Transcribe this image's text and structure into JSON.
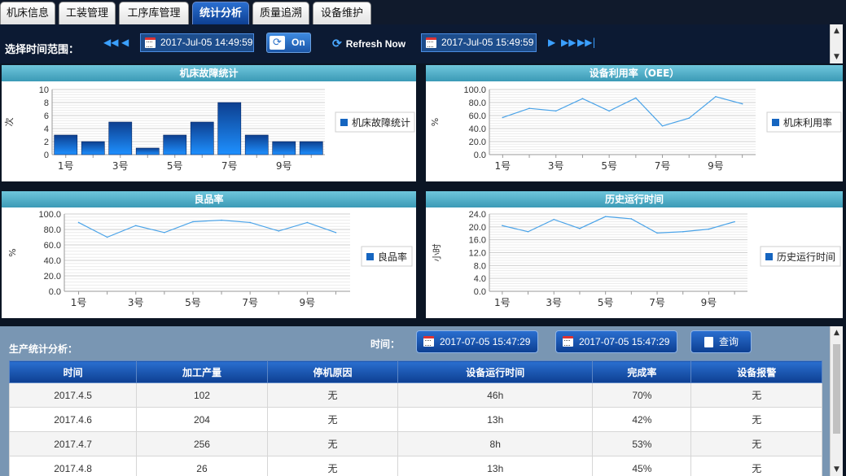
{
  "tabs": [
    "机床信息",
    "工装管理",
    "工序库管理",
    "统计分析",
    "质量追溯",
    "设备维护"
  ],
  "active_tab": "统计分析",
  "toolbar": {
    "range_label": "选择时间范围：",
    "start_time": "2017-Jul-05 14:49:59",
    "toggle_label": "On",
    "refresh_label": "Refresh Now",
    "end_time": "2017-Jul-05 15:49:59"
  },
  "chart_data": [
    {
      "type": "bar",
      "title": "机床故障统计",
      "ylabel": "次",
      "legend": "机床故障统计",
      "categories": [
        "1号",
        "2号",
        "3号",
        "4号",
        "5号",
        "6号",
        "7号",
        "8号",
        "9号",
        "10号"
      ],
      "tick_labels": [
        "1号",
        "3号",
        "5号",
        "7号",
        "9号"
      ],
      "values": [
        3,
        2,
        5,
        1,
        3,
        5,
        8,
        3,
        2,
        2
      ],
      "yticks": [
        "0",
        "2",
        "4",
        "6",
        "8",
        "10"
      ],
      "ylim": [
        0,
        10
      ],
      "grid": true,
      "legend_position": "right"
    },
    {
      "type": "line",
      "title": "设备利用率（OEE）",
      "ylabel": "%",
      "legend": "机床利用率",
      "categories": [
        "1号",
        "2号",
        "3号",
        "4号",
        "5号",
        "6号",
        "7号",
        "8号",
        "9号",
        "10号"
      ],
      "tick_labels": [
        "1号",
        "3号",
        "5号",
        "7号",
        "9号"
      ],
      "values": [
        57,
        71,
        67,
        86,
        67,
        87,
        44,
        56,
        89,
        78
      ],
      "yticks": [
        "0.0",
        "20.0",
        "40.0",
        "60.0",
        "80.0",
        "100.0"
      ],
      "ylim": [
        0,
        100
      ],
      "grid": true,
      "legend_position": "right"
    },
    {
      "type": "line",
      "title": "良品率",
      "ylabel": "%",
      "legend": "良品率",
      "categories": [
        "1号",
        "2号",
        "3号",
        "4号",
        "5号",
        "6号",
        "7号",
        "8号",
        "9号",
        "10号"
      ],
      "tick_labels": [
        "1号",
        "3号",
        "5号",
        "7号",
        "9号"
      ],
      "values": [
        89,
        70,
        85,
        76,
        90,
        92,
        89,
        78,
        89,
        76
      ],
      "yticks": [
        "0.0",
        "20.0",
        "40.0",
        "60.0",
        "80.0",
        "100.0"
      ],
      "ylim": [
        0,
        100
      ],
      "grid": true,
      "legend_position": "right"
    },
    {
      "type": "line",
      "title": "历史运行时间",
      "ylabel": "小时",
      "legend": "历史运行时间",
      "categories": [
        "1号",
        "2号",
        "3号",
        "4号",
        "5号",
        "6号",
        "7号",
        "8号",
        "9号",
        "10号"
      ],
      "tick_labels": [
        "1号",
        "3号",
        "5号",
        "7号",
        "9号"
      ],
      "values": [
        20.4,
        18.5,
        22.3,
        19.5,
        23.2,
        22.5,
        18.1,
        18.5,
        19.3,
        21.6
      ],
      "yticks": [
        "0.0",
        "4.0",
        "8.0",
        "12.0",
        "16.0",
        "20.0",
        "24.0"
      ],
      "ylim": [
        0,
        24
      ],
      "grid": true,
      "legend_position": "right"
    }
  ],
  "production": {
    "label": "生产统计分析：",
    "time_label": "时间：",
    "start": "2017-07-05 15:47:29",
    "end": "2017-07-05 15:47:29",
    "query_label": "查询",
    "columns": [
      "时间",
      "加工产量",
      "停机原因",
      "设备运行时间",
      "完成率",
      "设备报警"
    ],
    "rows": [
      [
        "2017.4.5",
        "102",
        "无",
        "46h",
        "70%",
        "无"
      ],
      [
        "2017.4.6",
        "204",
        "无",
        "13h",
        "42%",
        "无"
      ],
      [
        "2017.4.7",
        "256",
        "无",
        "8h",
        "53%",
        "无"
      ],
      [
        "2017.4.8",
        "26",
        "无",
        "13h",
        "45%",
        "无"
      ]
    ]
  },
  "colors": {
    "tab_active": "#1a56b0",
    "panel_header": "#4aa9c4",
    "bar_fill": "#1565c0",
    "line": "#4aa3e8",
    "background": "#0b1524",
    "bottom_bg": "#7996b3"
  },
  "icons": [
    "calendar-icon",
    "refresh-icon",
    "query-icon",
    "rewind-icon",
    "forward-icon"
  ]
}
